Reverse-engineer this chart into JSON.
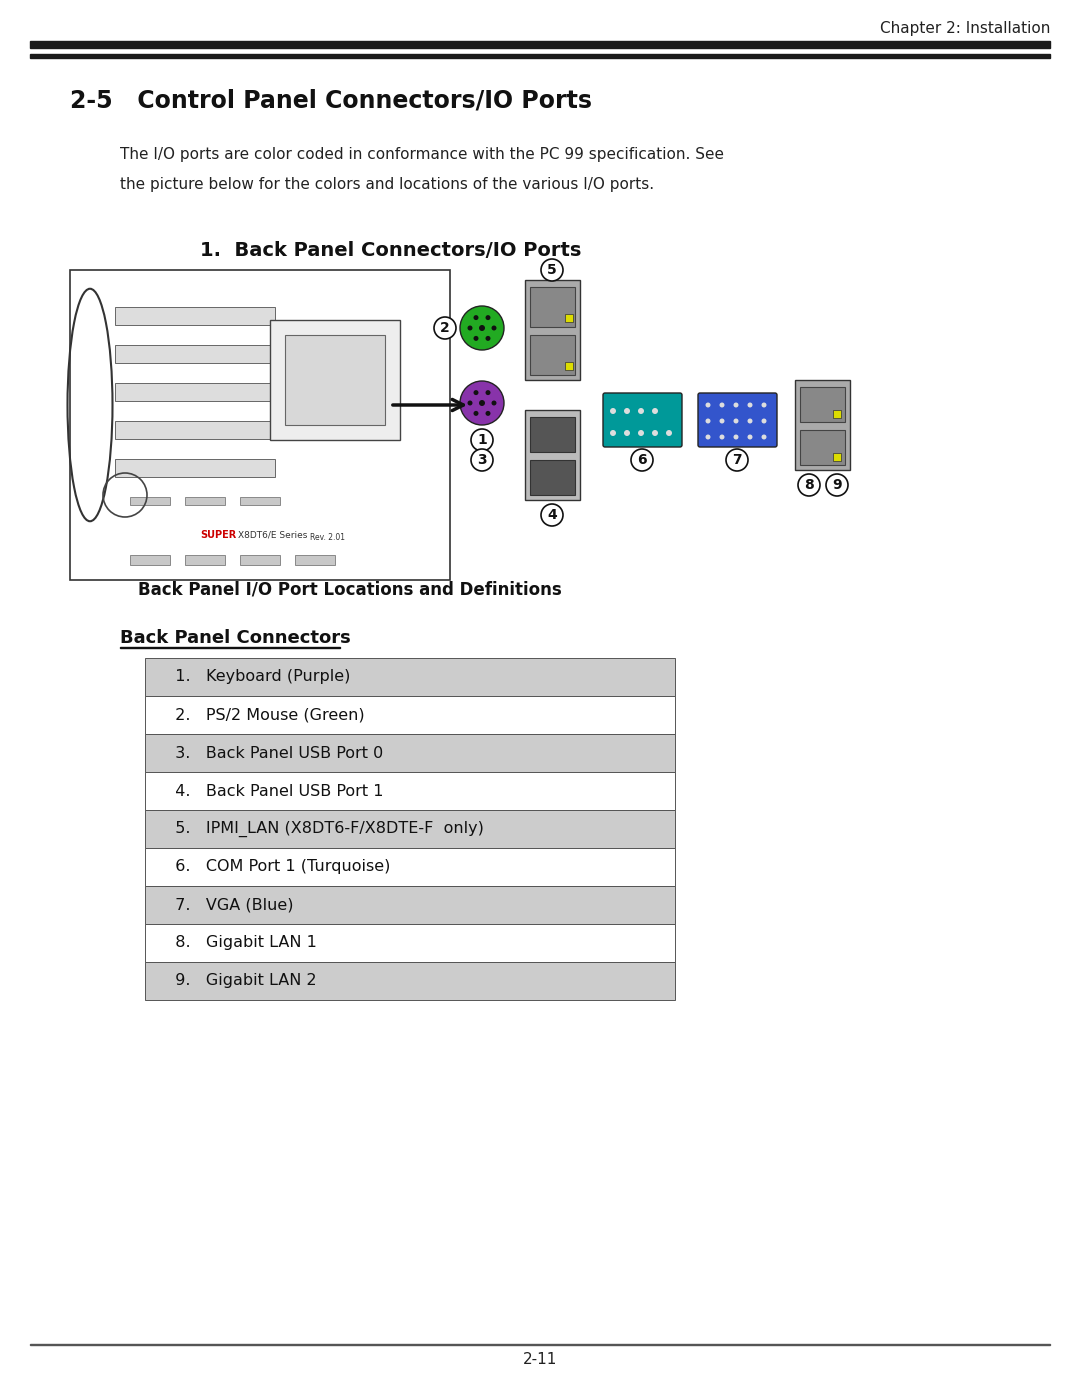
{
  "page_title": "Chapter 2: Installation",
  "section_title": "2-5   Control Panel Connectors/IO Ports",
  "body_text_line1": "The I/O ports are color coded in conformance with the PC 99 specification. See",
  "body_text_line2": "the picture below for the colors and locations of the various I/O ports.",
  "subsection_title": "1.  Back Panel Connectors/IO Ports",
  "caption": "Back Panel I/O Port Locations and Definitions",
  "connector_section_title": "Back Panel Connectors",
  "connectors": [
    {
      "num": "1.",
      "label": "Keyboard (Purple)",
      "shaded": true
    },
    {
      "num": "2.",
      "label": "PS/2 Mouse (Green)",
      "shaded": false
    },
    {
      "num": "3.",
      "label": "Back Panel USB Port 0",
      "shaded": true
    },
    {
      "num": "4.",
      "label": "Back Panel USB Port 1",
      "shaded": false
    },
    {
      "num": "5.",
      "label": "IPMI_LAN (X8DT6-F/X8DTE-F  only)",
      "shaded": true
    },
    {
      "num": "6.",
      "label": "COM Port 1 (Turquoise)",
      "shaded": false
    },
    {
      "num": "7.",
      "label": "VGA (Blue)",
      "shaded": true
    },
    {
      "num": "8.",
      "label": "Gigabit LAN 1",
      "shaded": false
    },
    {
      "num": "9.",
      "label": "Gigabit LAN 2",
      "shaded": true
    }
  ],
  "page_number": "2-11",
  "bg_color": "#ffffff",
  "header_line_color": "#1a1a1a",
  "shaded_row_color": "#cccccc",
  "table_border_color": "#555555",
  "green_color": "#22aa22",
  "purple_color": "#8833aa",
  "teal_color": "#009999",
  "blue_color": "#3355cc",
  "gray_color": "#aaaaaa",
  "yellow_color": "#dddd00"
}
